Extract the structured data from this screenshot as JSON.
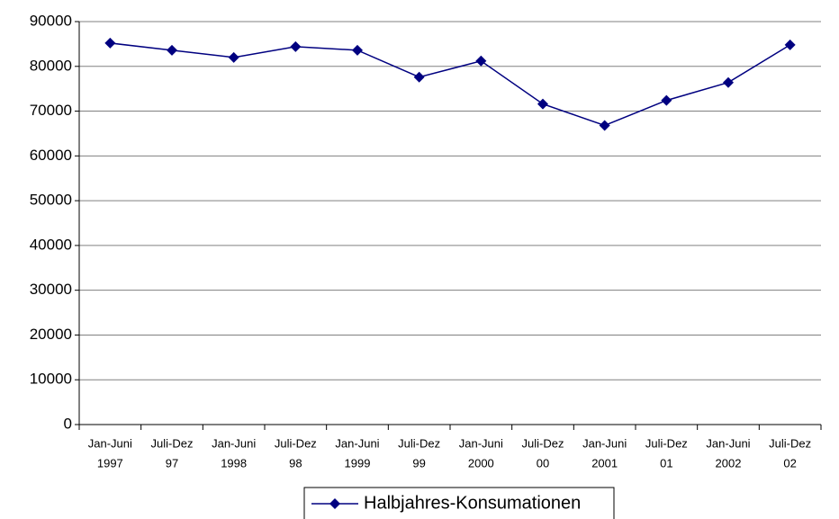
{
  "chart_data": {
    "type": "line",
    "categories": [
      [
        "Jan-Juni",
        "1997"
      ],
      [
        "Juli-Dez",
        "97"
      ],
      [
        "Jan-Juni",
        "1998"
      ],
      [
        "Juli-Dez",
        "98"
      ],
      [
        "Jan-Juni",
        "1999"
      ],
      [
        "Juli-Dez",
        "99"
      ],
      [
        "Jan-Juni",
        "2000"
      ],
      [
        "Juli-Dez",
        "00"
      ],
      [
        "Jan-Juni",
        "2001"
      ],
      [
        "Juli-Dez",
        "01"
      ],
      [
        "Jan-Juni",
        "2002"
      ],
      [
        "Juli-Dez",
        "02"
      ]
    ],
    "series": [
      {
        "name": "Halbjahres-Konsumationen",
        "color": "#000080",
        "values": [
          85200,
          83600,
          82000,
          84400,
          83600,
          77600,
          81200,
          71600,
          66800,
          72400,
          76400,
          84800
        ]
      }
    ],
    "ylim": [
      0,
      90000
    ],
    "yticks": [
      0,
      10000,
      20000,
      30000,
      40000,
      50000,
      60000,
      70000,
      80000,
      90000
    ],
    "grid": true,
    "legend": "bottom"
  }
}
